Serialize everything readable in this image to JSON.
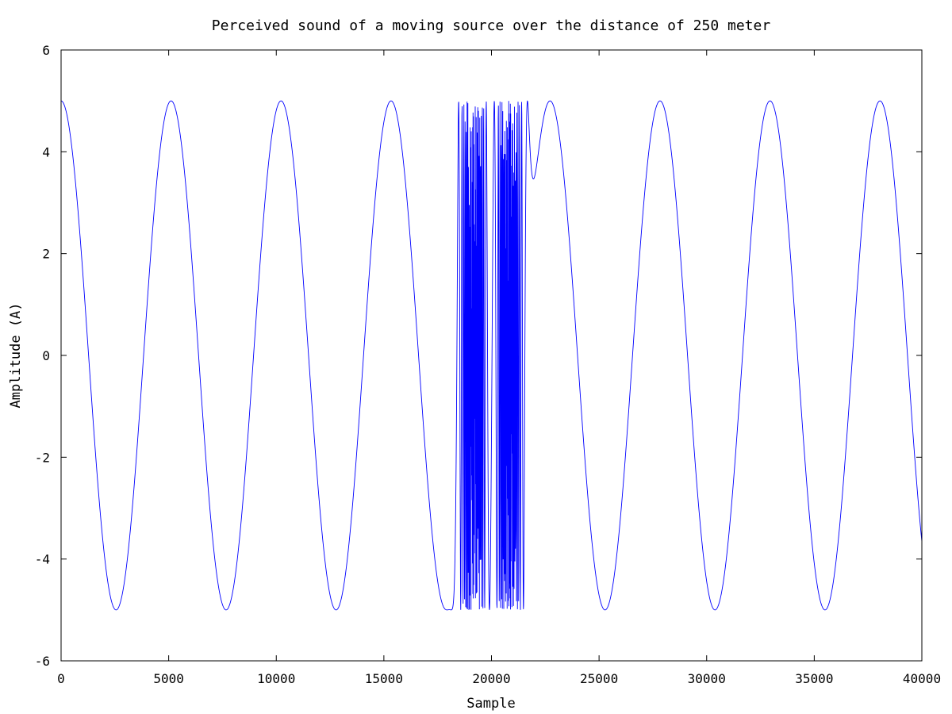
{
  "chart_data": {
    "type": "line",
    "title": "Perceived sound of a moving source over the distance of 250 meter",
    "xlabel": "Sample",
    "ylabel": "Amplitude (A)",
    "xlim": [
      0,
      40000
    ],
    "ylim": [
      -6,
      6
    ],
    "x_ticks": [
      0,
      5000,
      10000,
      15000,
      20000,
      25000,
      30000,
      35000,
      40000
    ],
    "y_ticks": [
      -6,
      -4,
      -2,
      0,
      2,
      4,
      6
    ],
    "grid": false,
    "legend": "none",
    "series": [
      {
        "color": "#0000ff",
        "amplitude": 5,
        "x_range": [
          0,
          40000
        ],
        "closest_approach_sample": 20000
      }
    ]
  }
}
